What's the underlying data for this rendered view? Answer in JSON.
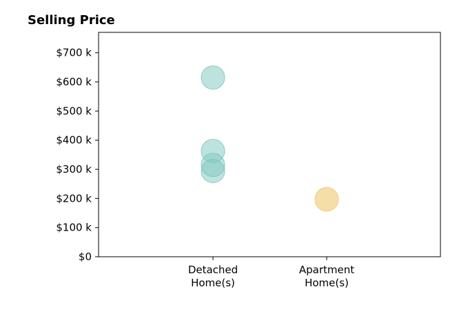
{
  "chart_data": {
    "type": "scatter",
    "title": "Selling Price",
    "xlabel": "",
    "ylabel": "",
    "categories": [
      [
        "Detached",
        "Home(s)"
      ],
      [
        "Apartment",
        "Home(s)"
      ]
    ],
    "ylim": [
      0,
      770
    ],
    "yticks": [
      0,
      100,
      200,
      300,
      400,
      500,
      600,
      700
    ],
    "ytick_labels": [
      "$0",
      "$100 k",
      "$200 k",
      "$300 k",
      "$400 k",
      "$500 k",
      "$600 k",
      "$700 k"
    ],
    "grid": false,
    "legend": "none",
    "series": [
      {
        "category_index": 0,
        "color": "#7ec8c0",
        "values": [
          615,
          363,
          315,
          294
        ]
      },
      {
        "category_index": 1,
        "color": "#f2d48c",
        "values": [
          196,
          198
        ]
      }
    ]
  }
}
